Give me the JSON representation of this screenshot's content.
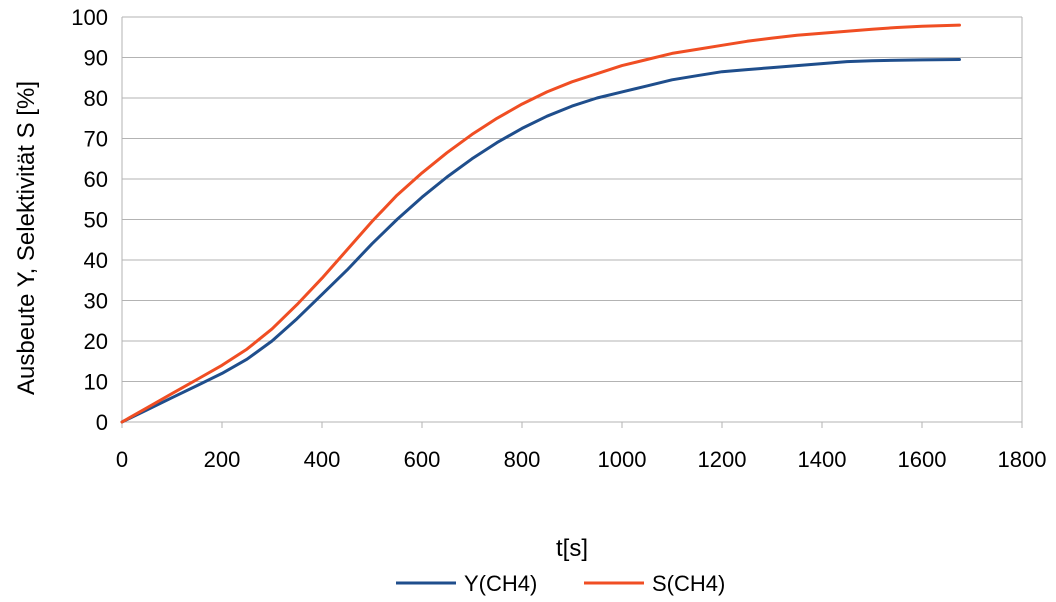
{
  "chart_data": {
    "type": "line",
    "title": "",
    "xlabel": "t[s]",
    "ylabel": "Ausbeute Y, Selektivität S [%]",
    "xlim": [
      0,
      1800
    ],
    "ylim": [
      0,
      100
    ],
    "xticks": [
      0,
      200,
      400,
      600,
      800,
      1000,
      1200,
      1400,
      1600,
      1800
    ],
    "yticks": [
      0,
      10,
      20,
      30,
      40,
      50,
      60,
      70,
      80,
      90,
      100
    ],
    "grid": "horizontal",
    "legend": "bottom",
    "series": [
      {
        "name": "Y(CH4)",
        "color": "#1f4e8c",
        "x": [
          0,
          50,
          100,
          150,
          200,
          250,
          300,
          350,
          400,
          450,
          500,
          550,
          600,
          650,
          700,
          750,
          800,
          850,
          900,
          950,
          1000,
          1050,
          1100,
          1150,
          1200,
          1250,
          1300,
          1350,
          1400,
          1450,
          1500,
          1550,
          1600,
          1675
        ],
        "y": [
          0,
          3,
          6,
          9,
          12,
          15.5,
          20,
          25.5,
          31.5,
          37.5,
          44,
          50,
          55.5,
          60.5,
          65,
          69,
          72.5,
          75.5,
          78,
          80,
          81.5,
          83,
          84.5,
          85.5,
          86.5,
          87,
          87.5,
          88,
          88.5,
          89,
          89.2,
          89.3,
          89.4,
          89.5
        ]
      },
      {
        "name": "S(CH4)",
        "color": "#f04e23",
        "x": [
          0,
          50,
          100,
          150,
          200,
          250,
          300,
          350,
          400,
          450,
          500,
          550,
          600,
          650,
          700,
          750,
          800,
          850,
          900,
          950,
          1000,
          1050,
          1100,
          1150,
          1200,
          1250,
          1300,
          1350,
          1400,
          1450,
          1500,
          1550,
          1600,
          1675
        ],
        "y": [
          0,
          3.5,
          7,
          10.5,
          14,
          18,
          23,
          29,
          35.5,
          42.5,
          49.5,
          56,
          61.5,
          66.5,
          71,
          75,
          78.5,
          81.5,
          84,
          86,
          88,
          89.5,
          91,
          92,
          93,
          94,
          94.8,
          95.5,
          96,
          96.5,
          97,
          97.4,
          97.7,
          98
        ]
      }
    ]
  }
}
